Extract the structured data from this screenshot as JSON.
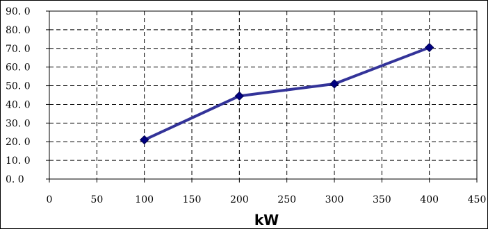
{
  "chart_data": {
    "type": "line",
    "title": "",
    "xlabel": "kW",
    "ylabel": "",
    "xlim": [
      0,
      450
    ],
    "ylim": [
      0,
      90
    ],
    "x_ticks": [
      0,
      50,
      100,
      150,
      200,
      250,
      300,
      350,
      400,
      450
    ],
    "x_tick_labels": [
      "0",
      "50",
      "100",
      "150",
      "200",
      "250",
      "300",
      "350",
      "400",
      "450"
    ],
    "y_ticks": [
      0,
      10,
      20,
      30,
      40,
      50,
      60,
      70,
      80,
      90
    ],
    "y_tick_labels": [
      "0. 0",
      "10. 0",
      "20. 0",
      "30. 0",
      "40. 0",
      "50. 0",
      "60. 0",
      "70. 0",
      "80. 0",
      "90. 0"
    ],
    "grid": true,
    "legend": "none",
    "series": [
      {
        "color": "#333399",
        "marker": "diamond",
        "points": [
          {
            "x": 100,
            "y": 21.0
          },
          {
            "x": 200,
            "y": 44.5
          },
          {
            "x": 300,
            "y": 51.0
          },
          {
            "x": 400,
            "y": 70.5
          }
        ]
      }
    ]
  }
}
